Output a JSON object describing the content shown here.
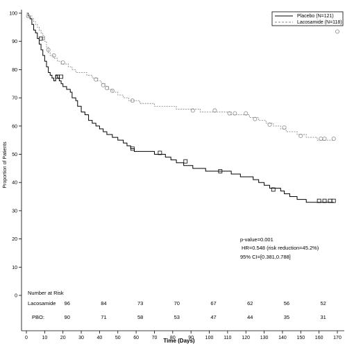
{
  "chart_data": {
    "type": "line",
    "title": "",
    "xlabel": "Time (Days)",
    "ylabel": "Proportion of Patients",
    "xlim": [
      0,
      170
    ],
    "ylim": [
      0,
      100
    ],
    "x_ticks": [
      0,
      10,
      20,
      30,
      40,
      50,
      60,
      70,
      80,
      90,
      100,
      110,
      120,
      130,
      140,
      150,
      160,
      170
    ],
    "y_ticks": [
      0,
      10,
      20,
      30,
      40,
      50,
      60,
      70,
      80,
      90,
      100
    ],
    "grid": false,
    "legend_position": "top-right",
    "colors": {
      "placebo": "#000000",
      "lacosamide": "#8a8a8a"
    },
    "series": [
      {
        "name": "Placebo (N=121)",
        "style": "solid",
        "color": "#000000",
        "x": [
          0,
          1,
          2,
          3,
          4,
          5,
          6,
          7,
          8,
          9,
          10,
          11,
          12,
          13,
          14,
          15,
          16,
          17,
          18,
          19,
          20,
          22,
          24,
          25,
          27,
          28,
          30,
          32,
          34,
          36,
          38,
          40,
          42,
          44,
          47,
          50,
          53,
          55,
          57,
          59,
          61,
          63,
          66,
          70,
          73,
          76,
          79,
          82,
          86,
          91,
          95,
          98,
          103,
          107,
          112,
          117,
          121,
          124,
          127,
          130,
          133,
          136,
          139,
          141,
          144,
          146,
          148,
          150,
          153,
          155,
          158,
          163,
          168
        ],
        "y": [
          100,
          99,
          98,
          96,
          94,
          93,
          91,
          89,
          87,
          85,
          83,
          81,
          79,
          78,
          77,
          76,
          78,
          77,
          76,
          75,
          74,
          73,
          72,
          70,
          69,
          67,
          65,
          64,
          62,
          61,
          60,
          59,
          58,
          57,
          56,
          55,
          54,
          53,
          52,
          51,
          51,
          51,
          51,
          50,
          50,
          49,
          48,
          47,
          46,
          45,
          45,
          44,
          44,
          44,
          43,
          42,
          42,
          41,
          40,
          39,
          38,
          38,
          37,
          36,
          35,
          35,
          34,
          34,
          33,
          33,
          33,
          33,
          33
        ],
        "censored": [
          [
            8,
            91
          ],
          [
            17,
            77.5
          ],
          [
            19,
            77.5
          ],
          [
            58,
            52
          ],
          [
            73,
            50.5
          ],
          [
            87,
            47.5
          ],
          [
            106,
            44
          ],
          [
            135,
            37.5
          ],
          [
            160,
            33.5
          ],
          [
            163,
            33.5
          ],
          [
            166,
            33.5
          ],
          [
            168,
            33.5
          ]
        ]
      },
      {
        "name": "Lacosamide (N=118)",
        "style": "dashed",
        "color": "#8a8a8a",
        "x": [
          0,
          1,
          2,
          3,
          4,
          5,
          6,
          7,
          8,
          9,
          10,
          11,
          12,
          13,
          15,
          17,
          19,
          21,
          23,
          25,
          27,
          30,
          33,
          36,
          39,
          41,
          43,
          45,
          47,
          50,
          53,
          56,
          59,
          62,
          66,
          70,
          74,
          78,
          82,
          86,
          90,
          95,
          100,
          104,
          108,
          112,
          117,
          122,
          127,
          131,
          135,
          139,
          142,
          145,
          148,
          150,
          153,
          156,
          159,
          162,
          165,
          168
        ],
        "y": [
          100,
          99,
          99,
          98,
          97,
          96,
          95,
          94,
          93,
          92,
          90,
          88,
          86,
          85,
          84,
          83,
          82,
          82,
          81,
          80,
          79,
          79,
          78,
          77,
          76,
          75,
          74,
          73,
          72,
          71,
          70,
          69,
          69,
          68,
          68,
          67,
          67,
          67,
          66,
          66,
          66,
          65,
          65,
          65,
          65,
          64,
          64,
          63,
          62,
          61,
          60,
          59,
          58,
          58,
          57,
          57,
          56,
          56,
          55,
          55,
          55,
          55
        ],
        "censored": [
          [
            1,
            99
          ],
          [
            9,
            91
          ],
          [
            12,
            87
          ],
          [
            15,
            85
          ],
          [
            20,
            82.5
          ],
          [
            38,
            76.5
          ],
          [
            42,
            74.5
          ],
          [
            44,
            73.5
          ],
          [
            47,
            72.5
          ],
          [
            58,
            69
          ],
          [
            91,
            65.5
          ],
          [
            103,
            65.5
          ],
          [
            111,
            64.5
          ],
          [
            114,
            64.5
          ],
          [
            120,
            64.5
          ],
          [
            125,
            62.5
          ],
          [
            133,
            60.5
          ],
          [
            141,
            59.5
          ],
          [
            150,
            56.5
          ],
          [
            161,
            55.5
          ],
          [
            163,
            55.5
          ],
          [
            168,
            55.5
          ],
          [
            169.5,
            97.5
          ],
          [
            170,
            93.5
          ]
        ]
      }
    ],
    "annotations": {
      "pvalue": "p-value=0.001",
      "hr": "HR=0.548 (risk reduction=45.2%)",
      "ci": "95% CI=[0.381,0.788]"
    },
    "risk_table": {
      "header": "Number at Risk",
      "rows": [
        {
          "label": "Lacosamide",
          "values": [
            "96",
            "84",
            "73",
            "70",
            "67",
            "62",
            "56",
            "52"
          ]
        },
        {
          "label": "PBO:",
          "values": [
            "90",
            "71",
            "58",
            "53",
            "47",
            "44",
            "35",
            "31"
          ]
        }
      ],
      "days": [
        20,
        40,
        60,
        80,
        100,
        120,
        140,
        160
      ]
    }
  }
}
